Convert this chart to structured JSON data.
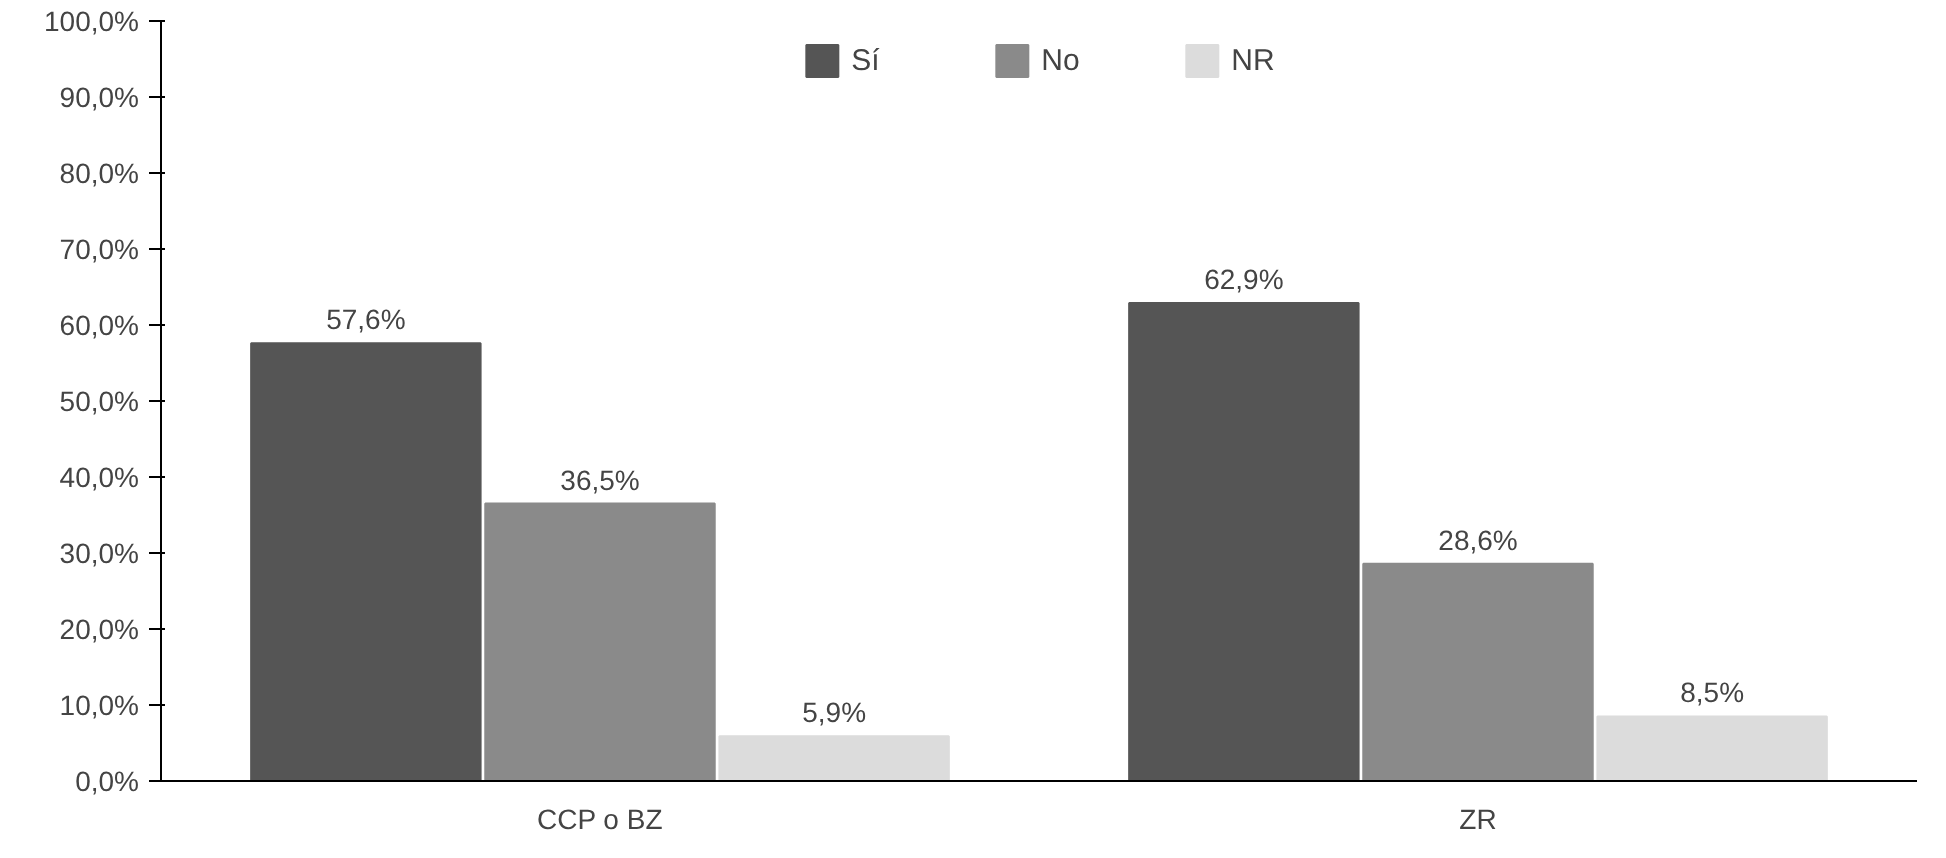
{
  "chart_data": {
    "type": "bar",
    "categories": [
      "CCP o BZ",
      "ZR"
    ],
    "series": [
      {
        "name": "Sí",
        "color": "#555555",
        "values": [
          57.6,
          62.9
        ],
        "value_labels": [
          "57,6%",
          "62,9%"
        ]
      },
      {
        "name": "No",
        "color": "#8a8a8a",
        "values": [
          36.5,
          28.6
        ],
        "value_labels": [
          "36,5%",
          "28,6%"
        ]
      },
      {
        "name": "NR",
        "color": "#dcdcdc",
        "values": [
          5.9,
          8.5
        ],
        "value_labels": [
          "5,9%",
          "8,5%"
        ]
      }
    ],
    "ylim": [
      0,
      100
    ],
    "yticks": [
      {
        "value": 0,
        "label": "0,0%"
      },
      {
        "value": 10,
        "label": "10,0%"
      },
      {
        "value": 20,
        "label": "20,0%"
      },
      {
        "value": 30,
        "label": "30,0%"
      },
      {
        "value": 40,
        "label": "40,0%"
      },
      {
        "value": 50,
        "label": "50,0%"
      },
      {
        "value": 60,
        "label": "60,0%"
      },
      {
        "value": 70,
        "label": "70,0%"
      },
      {
        "value": 80,
        "label": "80,0%"
      },
      {
        "value": 90,
        "label": "90,0%"
      },
      {
        "value": 100,
        "label": "100,0%"
      }
    ],
    "grid": false,
    "legend": "top"
  }
}
